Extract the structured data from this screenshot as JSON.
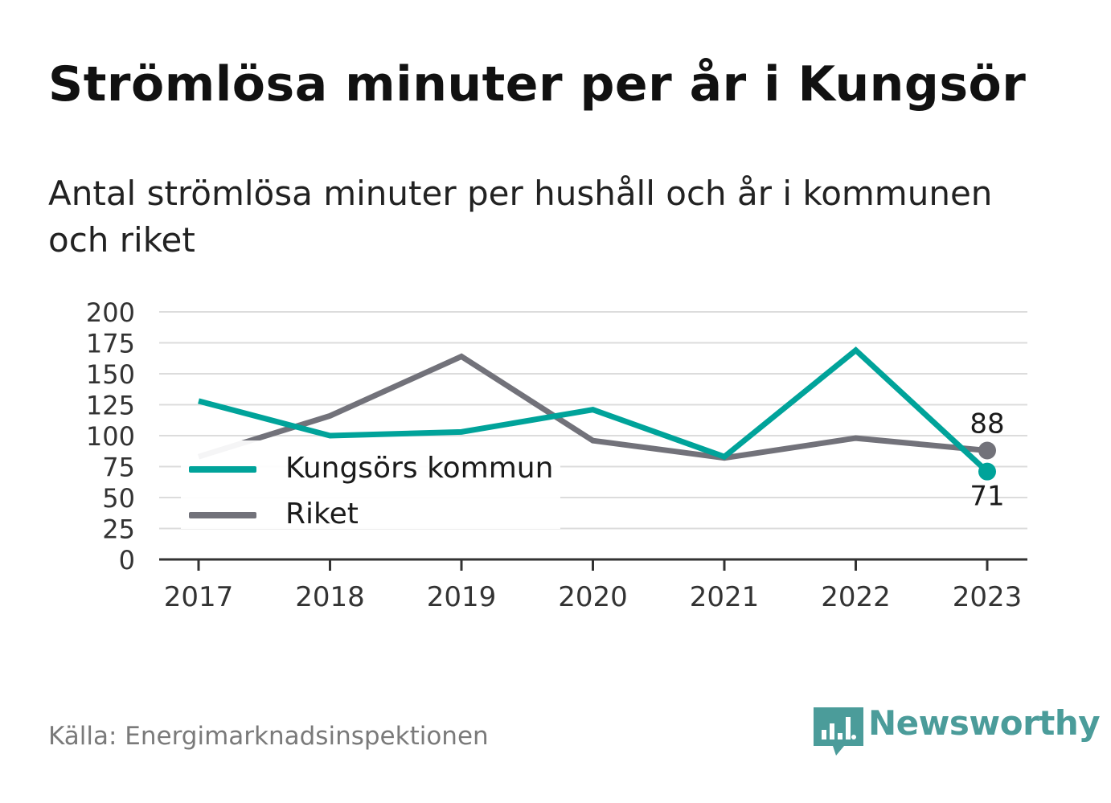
{
  "header": {
    "title": "Strömlösa minuter per år i Kungsör",
    "subtitle": "Antal strömlösa minuter per hushåll och år i kommunen och riket"
  },
  "footer": {
    "source": "Källa: Energimarknadsinspektionen",
    "brand": "Newsworthy",
    "brand_icon": "bar-chart-speech-bubble-icon",
    "brand_color": "#4b9c9a"
  },
  "chart_data": {
    "type": "line",
    "x": [
      "2017",
      "2018",
      "2019",
      "2020",
      "2021",
      "2022",
      "2023"
    ],
    "yticks": [
      "0",
      "25",
      "50",
      "75",
      "100",
      "125",
      "150",
      "175",
      "200"
    ],
    "ylim": [
      0,
      200
    ],
    "grid": true,
    "legend_position": "left",
    "series": [
      {
        "name": "Kungsörs kommun",
        "color": "#00a39a",
        "values": [
          128,
          100,
          103,
          121,
          83,
          169,
          71
        ],
        "end_label": "71"
      },
      {
        "name": "Riket",
        "color": "#72727a",
        "values": [
          83,
          116,
          164,
          96,
          82,
          98,
          88
        ],
        "end_label": "88"
      }
    ]
  }
}
